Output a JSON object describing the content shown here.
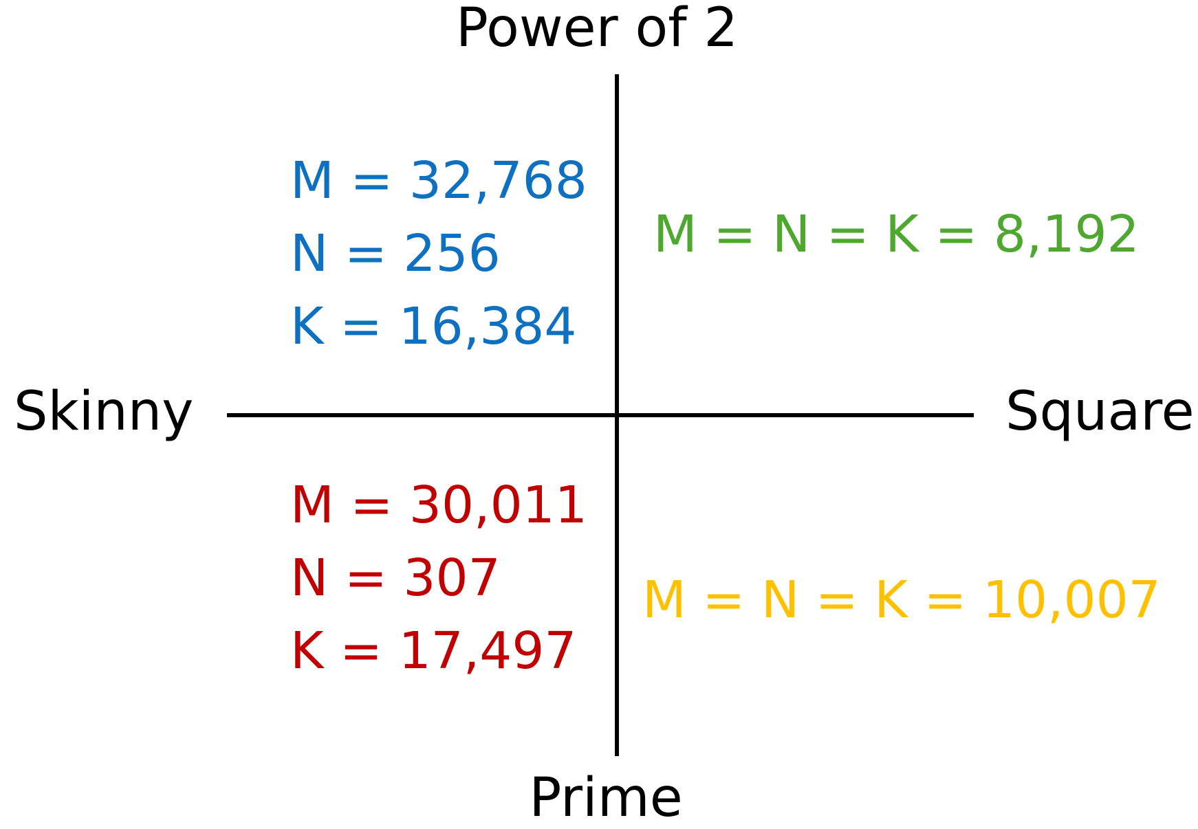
{
  "axes": {
    "top_label": "Power of 2",
    "bottom_label": "Prime",
    "left_label": "Skinny",
    "right_label": "Square"
  },
  "quadrants": {
    "top_left": {
      "color": "#0e70c0",
      "lines": [
        "M = 32,768",
        "N = 256",
        "K = 16,384"
      ]
    },
    "top_right": {
      "color": "#4ea72e",
      "lines": [
        "M = N = K = 8,192"
      ]
    },
    "bottom_left": {
      "color": "#c00000",
      "lines": [
        "M = 30,011",
        "N = 307",
        "K = 17,497"
      ]
    },
    "bottom_right": {
      "color": "#ffc000",
      "lines": [
        "M = N = K = 10,007"
      ]
    }
  }
}
